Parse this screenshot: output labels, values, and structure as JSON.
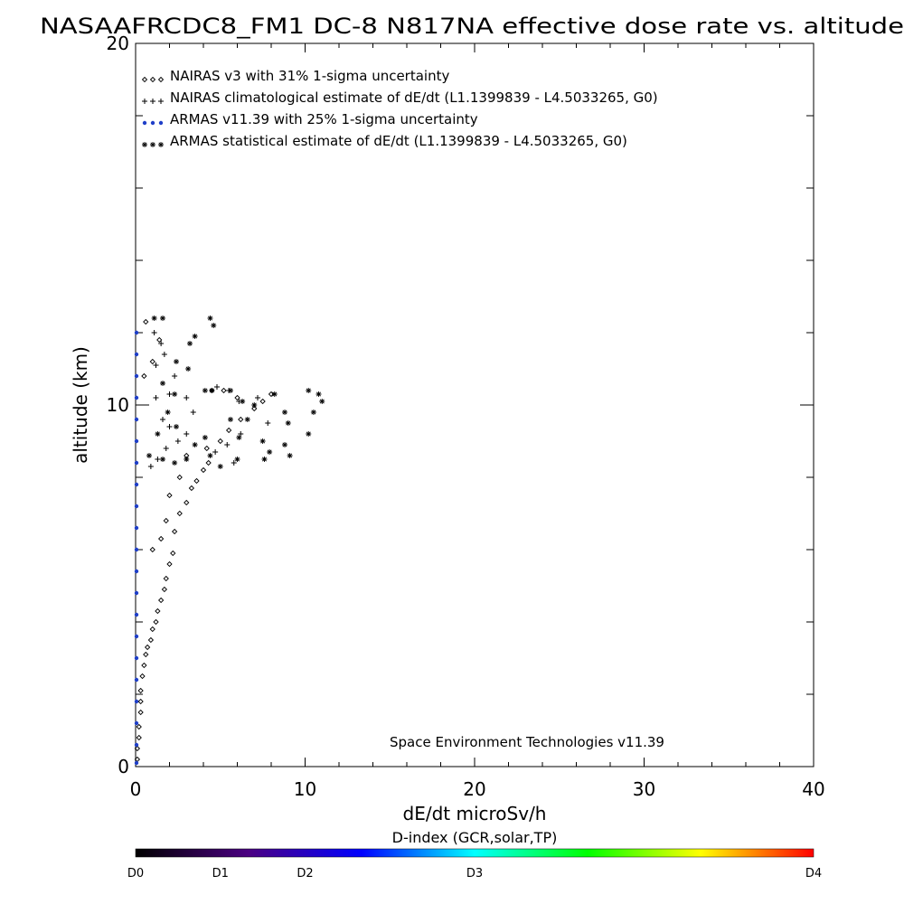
{
  "chart_data": {
    "type": "scatter",
    "title": "NASAAFRCDC8_FM1 DC-8   N817NA effective dose rate vs. altitude",
    "xlabel": "dE/dt microSv/h",
    "ylabel": "altitude (km)",
    "xlim": [
      0,
      40
    ],
    "ylim": [
      0,
      20
    ],
    "x_ticks": [
      "0",
      "10",
      "20",
      "30",
      "40"
    ],
    "y_ticks": [
      "0",
      "10",
      "20"
    ],
    "grid": false,
    "legend_position": "top-left",
    "credit": "Space Environment Technologies v11.39",
    "series": [
      {
        "name": "NAIRAS v3 with 31% 1-sigma uncertainty",
        "symbol": "diamond",
        "legend_glyph": "◇◇◇",
        "color": "#000000",
        "points": [
          [
            0.1,
            0.2
          ],
          [
            0.1,
            0.5
          ],
          [
            0.2,
            0.8
          ],
          [
            0.2,
            1.1
          ],
          [
            0.3,
            1.5
          ],
          [
            0.3,
            1.8
          ],
          [
            0.3,
            2.1
          ],
          [
            0.4,
            2.5
          ],
          [
            0.5,
            2.8
          ],
          [
            0.6,
            3.1
          ],
          [
            0.7,
            3.3
          ],
          [
            0.9,
            3.5
          ],
          [
            1.0,
            3.8
          ],
          [
            1.2,
            4.0
          ],
          [
            1.3,
            4.3
          ],
          [
            1.5,
            4.6
          ],
          [
            1.7,
            4.9
          ],
          [
            1.8,
            5.2
          ],
          [
            2.0,
            5.6
          ],
          [
            2.2,
            5.9
          ],
          [
            1.0,
            6.0
          ],
          [
            1.5,
            6.3
          ],
          [
            2.3,
            6.5
          ],
          [
            1.8,
            6.8
          ],
          [
            2.6,
            7.0
          ],
          [
            3.0,
            7.3
          ],
          [
            2.0,
            7.5
          ],
          [
            3.3,
            7.7
          ],
          [
            3.6,
            7.9
          ],
          [
            2.6,
            8.0
          ],
          [
            4.0,
            8.2
          ],
          [
            4.3,
            8.4
          ],
          [
            3.0,
            8.6
          ],
          [
            4.2,
            8.8
          ],
          [
            5.0,
            9.0
          ],
          [
            5.5,
            9.3
          ],
          [
            6.2,
            9.6
          ],
          [
            7.0,
            9.9
          ],
          [
            7.5,
            10.1
          ],
          [
            8.0,
            10.3
          ],
          [
            4.5,
            10.4
          ],
          [
            5.2,
            10.4
          ],
          [
            6.0,
            10.2
          ],
          [
            0.5,
            10.8
          ],
          [
            1.0,
            11.2
          ],
          [
            1.4,
            11.8
          ],
          [
            0.6,
            12.3
          ]
        ]
      },
      {
        "name": "NAIRAS climatological estimate of dE/dt (L1.1399839 - L4.5033265, G0)",
        "symbol": "plus",
        "legend_glyph": "+++",
        "color": "#000000",
        "points": [
          [
            0.9,
            8.3
          ],
          [
            1.3,
            8.5
          ],
          [
            1.8,
            8.8
          ],
          [
            2.5,
            9.0
          ],
          [
            3.0,
            9.2
          ],
          [
            2.0,
            9.4
          ],
          [
            1.6,
            9.6
          ],
          [
            3.4,
            9.8
          ],
          [
            1.2,
            10.2
          ],
          [
            2.0,
            10.3
          ],
          [
            3.0,
            10.2
          ],
          [
            4.8,
            10.5
          ],
          [
            5.5,
            10.4
          ],
          [
            6.1,
            10.1
          ],
          [
            7.2,
            10.2
          ],
          [
            7.8,
            9.5
          ],
          [
            4.7,
            8.7
          ],
          [
            5.4,
            8.9
          ],
          [
            6.2,
            9.2
          ],
          [
            5.8,
            8.4
          ],
          [
            1.1,
            12.0
          ],
          [
            1.5,
            11.7
          ],
          [
            1.7,
            11.4
          ],
          [
            1.2,
            11.1
          ],
          [
            2.3,
            10.8
          ]
        ]
      },
      {
        "name": "ARMAS v11.39 with 25% 1-sigma uncertainty",
        "symbol": "dot",
        "legend_glyph": "•••",
        "color": "#1f3fc8",
        "points": [
          [
            0.02,
            0.1
          ],
          [
            0.02,
            0.6
          ],
          [
            0.02,
            1.2
          ],
          [
            0.02,
            1.8
          ],
          [
            0.02,
            2.4
          ],
          [
            0.02,
            3.0
          ],
          [
            0.02,
            3.6
          ],
          [
            0.02,
            4.2
          ],
          [
            0.02,
            4.8
          ],
          [
            0.02,
            5.4
          ],
          [
            0.02,
            6.0
          ],
          [
            0.02,
            6.6
          ],
          [
            0.02,
            7.2
          ],
          [
            0.02,
            7.8
          ],
          [
            0.02,
            8.4
          ],
          [
            0.02,
            9.0
          ],
          [
            0.02,
            9.6
          ],
          [
            0.02,
            10.2
          ],
          [
            0.02,
            10.8
          ],
          [
            0.02,
            11.4
          ],
          [
            0.02,
            12.0
          ]
        ]
      },
      {
        "name": "ARMAS statistical estimate of dE/dt (L1.1399839 - L4.5033265, G0)",
        "symbol": "asterisk",
        "legend_glyph": "✱✱✱",
        "color": "#000000",
        "points": [
          [
            1.1,
            12.4
          ],
          [
            1.6,
            12.4
          ],
          [
            4.4,
            12.4
          ],
          [
            4.6,
            12.2
          ],
          [
            3.5,
            11.9
          ],
          [
            3.2,
            11.7
          ],
          [
            2.4,
            11.2
          ],
          [
            3.1,
            11.0
          ],
          [
            1.6,
            10.6
          ],
          [
            2.3,
            10.3
          ],
          [
            4.1,
            10.4
          ],
          [
            4.5,
            10.4
          ],
          [
            5.6,
            10.4
          ],
          [
            6.3,
            10.1
          ],
          [
            7.0,
            10.0
          ],
          [
            8.2,
            10.3
          ],
          [
            10.2,
            10.4
          ],
          [
            10.8,
            10.3
          ],
          [
            11.0,
            10.1
          ],
          [
            10.5,
            9.8
          ],
          [
            10.2,
            9.2
          ],
          [
            9.0,
            9.5
          ],
          [
            8.8,
            8.9
          ],
          [
            9.1,
            8.6
          ],
          [
            7.9,
            8.7
          ],
          [
            7.6,
            8.5
          ],
          [
            6.0,
            8.5
          ],
          [
            5.0,
            8.3
          ],
          [
            4.4,
            8.6
          ],
          [
            3.0,
            8.5
          ],
          [
            2.3,
            8.4
          ],
          [
            1.6,
            8.5
          ],
          [
            0.8,
            8.6
          ],
          [
            1.3,
            9.2
          ],
          [
            2.4,
            9.4
          ],
          [
            3.5,
            8.9
          ],
          [
            4.1,
            9.1
          ],
          [
            5.6,
            9.6
          ],
          [
            6.1,
            9.1
          ],
          [
            6.6,
            9.6
          ],
          [
            7.5,
            9.0
          ],
          [
            8.8,
            9.8
          ],
          [
            1.9,
            9.8
          ]
        ]
      }
    ],
    "colorbar": {
      "title": "D-index (GCR,solar,TP)",
      "labels": [
        "D0",
        "D1",
        "D2",
        "D3",
        "D4"
      ],
      "label_positions": [
        0.0,
        0.125,
        0.25,
        0.5,
        1.0
      ],
      "colors": [
        "#000000",
        "#4b0082",
        "#0000ff",
        "#00ffff",
        "#00ff00",
        "#ffff00",
        "#ff0000"
      ]
    }
  }
}
